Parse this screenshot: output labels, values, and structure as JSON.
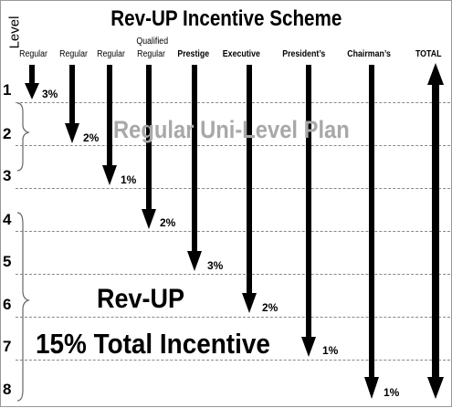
{
  "title": "Rev-UP Incentive Scheme",
  "level_axis_title": "Level",
  "columns": [
    {
      "id": "regular1",
      "label": "Regular",
      "percent": "3%",
      "ends_level": 1
    },
    {
      "id": "regular2",
      "label": "Regular",
      "percent": "2%",
      "ends_level": 2
    },
    {
      "id": "regular3",
      "label": "Regular",
      "percent": "1%",
      "ends_level": 3
    },
    {
      "id": "qualified_regular",
      "label_line1": "Qualified",
      "label_line2": "Regular",
      "percent": "2%",
      "ends_level": 4
    },
    {
      "id": "prestige",
      "label": "Prestige",
      "percent": "3%",
      "ends_level": 5
    },
    {
      "id": "executive",
      "label": "Executive",
      "percent": "2%",
      "ends_level": 6
    },
    {
      "id": "presidents",
      "label": "President’s",
      "percent": "1%",
      "ends_level": 7
    },
    {
      "id": "chairmans",
      "label": "Chairman’s",
      "percent": "1%",
      "ends_level": 8
    },
    {
      "id": "total",
      "label": "TOTAL"
    }
  ],
  "levels": [
    "1",
    "2",
    "3",
    "4",
    "5",
    "6",
    "7",
    "8"
  ],
  "annotations": {
    "regular_plan": "Regular Uni-Level Plan",
    "rev_up": "Rev-UP",
    "total_incentive": "15% Total Incentive"
  },
  "colors": {
    "arrow": "#000000",
    "plan_text": "#a8a8a8",
    "grid": "#888888"
  }
}
